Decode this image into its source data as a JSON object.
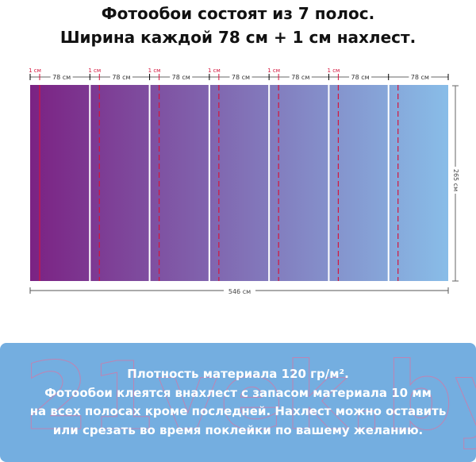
{
  "heading": {
    "line1": "Фотообои состоят из 7 полос.",
    "line2": "Ширина каждой 78 см + 1 см нахлест."
  },
  "diagram": {
    "strip_count": 7,
    "overlap_label": "1 см",
    "strip_width_label": "78 см",
    "total_width_label": "546 см",
    "height_label": "265 см",
    "gradient_start": "#7b2283",
    "gradient_end": "#88bde8",
    "overlap_line_color": "#d4143c"
  },
  "info": {
    "watermark": "21vek.by",
    "lines": [
      "Плотность материала 120 гр/м².",
      "Фотообои клеятся внахлест с запасом материала 10 мм",
      "на всех полосах кроме последней. Нахлест можно оставить",
      "или срезать во время поклейки по вашему желанию."
    ],
    "background": "#74aee0"
  }
}
